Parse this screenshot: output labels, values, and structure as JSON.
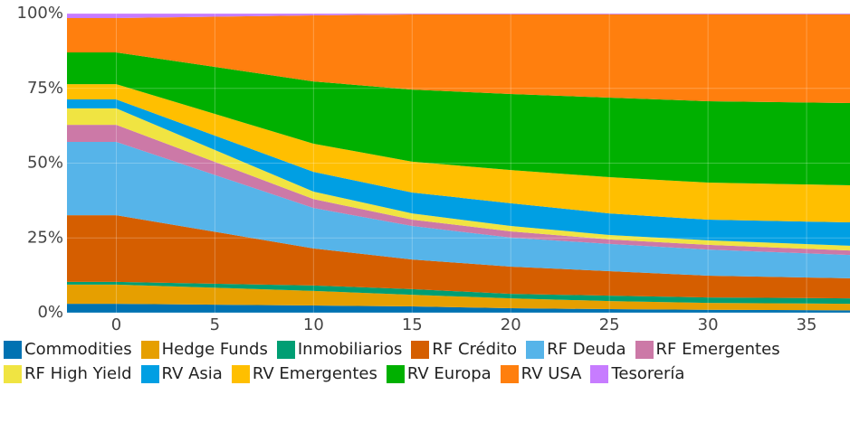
{
  "chart_data": {
    "type": "stacked_area",
    "x": [
      -2.5,
      0,
      10,
      15,
      20,
      25,
      30,
      37.2
    ],
    "xlim": [
      -2.5,
      37.2
    ],
    "xticks": [
      0,
      5,
      10,
      15,
      20,
      25,
      30,
      35
    ],
    "ylim": [
      0,
      100
    ],
    "yticks": [
      {
        "value": 0,
        "label": "0%"
      },
      {
        "value": 25,
        "label": "25%"
      },
      {
        "value": 50,
        "label": "50%"
      },
      {
        "value": 75,
        "label": "75%"
      },
      {
        "value": 100,
        "label": "100%"
      }
    ],
    "grid": true,
    "series": [
      {
        "name": "Commodities",
        "color": "#0072b2",
        "values": [
          3,
          3,
          2.4,
          2.1,
          1.5,
          1.2,
          1,
          0.8
        ]
      },
      {
        "name": "Hedge Funds",
        "color": "#e69f00",
        "values": [
          6.4,
          6.4,
          4.9,
          3.9,
          3.3,
          2.7,
          2.3,
          2.2
        ]
      },
      {
        "name": "Inmobiliarios",
        "color": "#009e73",
        "values": [
          0.9,
          0.9,
          1.8,
          1.9,
          1.5,
          1.8,
          1.8,
          1.8
        ]
      },
      {
        "name": "RF Crédito",
        "color": "#d55e00",
        "values": [
          22.3,
          22.3,
          12.4,
          9.9,
          9.1,
          8.2,
          7.3,
          6.7
        ]
      },
      {
        "name": "RF Deuda",
        "color": "#56b4e9",
        "values": [
          24.5,
          24.5,
          13.5,
          11.2,
          9.7,
          9.1,
          8.7,
          7.8
        ]
      },
      {
        "name": "RF Emergentes",
        "color": "#cc79a7",
        "values": [
          5.7,
          5.7,
          3,
          2.1,
          2.1,
          1.5,
          1.6,
          1.5
        ]
      },
      {
        "name": "RF High Yield",
        "color": "#f0e442",
        "values": [
          5.5,
          5.5,
          2.5,
          2.1,
          1.8,
          1.5,
          1.5,
          1.6
        ]
      },
      {
        "name": "RV Asia",
        "color": "#009fe3",
        "values": [
          3,
          3,
          6.6,
          7,
          7.6,
          7.2,
          6.9,
          7.8
        ]
      },
      {
        "name": "RV Emergentes",
        "color": "#ffbf00",
        "values": [
          5.1,
          5.1,
          9.4,
          10.3,
          11.1,
          12.1,
          12.4,
          12.4
        ]
      },
      {
        "name": "RV Europa",
        "color": "#00b000",
        "values": [
          10.6,
          10.6,
          20.8,
          24.1,
          25.4,
          26.6,
          27.2,
          27.5
        ]
      },
      {
        "name": "RV USA",
        "color": "#ff7f0e",
        "values": [
          11.5,
          11.5,
          22.1,
          25.1,
          26.6,
          27.8,
          29,
          29.6
        ]
      },
      {
        "name": "Tesorería",
        "color": "#c77cff",
        "values": [
          1.5,
          1.5,
          0.6,
          0.3,
          0.3,
          0.3,
          0.3,
          0.3
        ]
      }
    ]
  }
}
